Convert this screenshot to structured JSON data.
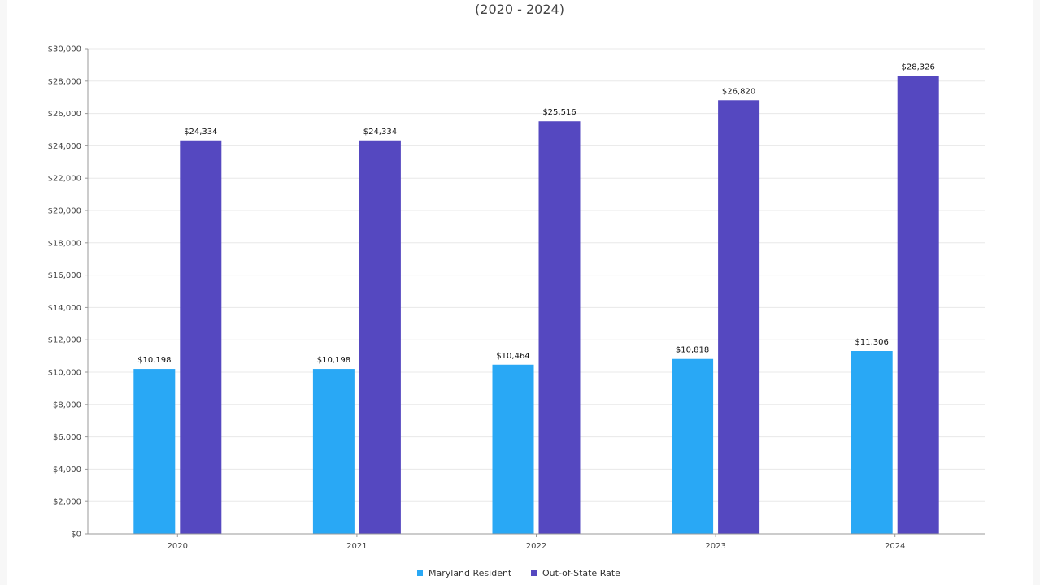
{
  "chart_data": {
    "type": "bar",
    "title": "",
    "subtitle": "(2020 - 2024)",
    "xlabel": "",
    "ylabel": "",
    "categories": [
      "2020",
      "2021",
      "2022",
      "2023",
      "2024"
    ],
    "series": [
      {
        "name": "Maryland Resident",
        "color": "#29a8f5",
        "values": [
          10198,
          10198,
          10464,
          10818,
          11306
        ],
        "labels": [
          "$10,198",
          "$10,198",
          "$10,464",
          "$10,818",
          "$11,306"
        ]
      },
      {
        "name": "Out-of-State Rate",
        "color": "#5548c0",
        "values": [
          24334,
          24334,
          25516,
          26820,
          28326
        ],
        "labels": [
          "$24,334",
          "$24,334",
          "$25,516",
          "$26,820",
          "$28,326"
        ]
      }
    ],
    "ylim": [
      0,
      30000
    ],
    "yticks": [
      0,
      2000,
      4000,
      6000,
      8000,
      10000,
      12000,
      14000,
      16000,
      18000,
      20000,
      22000,
      24000,
      26000,
      28000,
      30000
    ],
    "ytick_labels": [
      "$0",
      "$2,000",
      "$4,000",
      "$6,000",
      "$8,000",
      "$10,000",
      "$12,000",
      "$14,000",
      "$16,000",
      "$18,000",
      "$20,000",
      "$22,000",
      "$24,000",
      "$26,000",
      "$28,000",
      "$30,000"
    ],
    "grid": true,
    "legend_position": "bottom-center"
  }
}
